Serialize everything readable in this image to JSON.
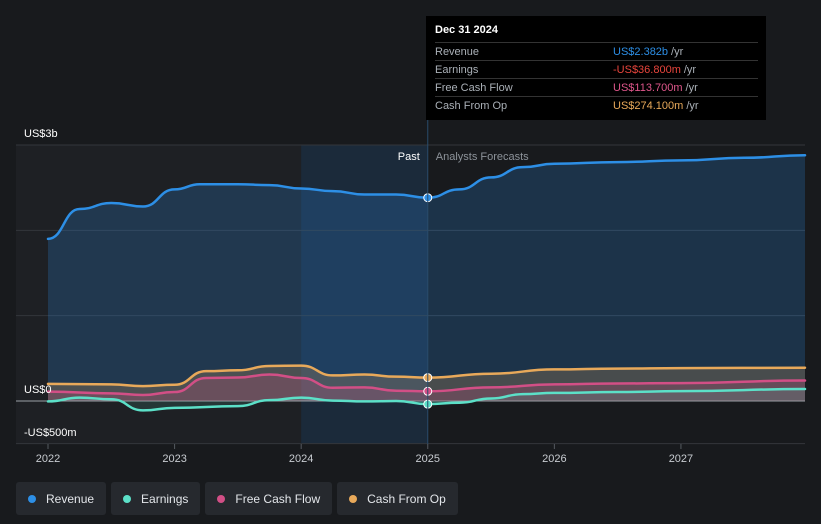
{
  "tooltip": {
    "date": "Dec 31 2024",
    "rows": [
      {
        "label": "Revenue",
        "value": "US$2.382b",
        "unit": "/yr",
        "color": "#2d8fe6"
      },
      {
        "label": "Earnings",
        "value": "-US$36.800m",
        "unit": "/yr",
        "color": "#e8453c"
      },
      {
        "label": "Free Cash Flow",
        "value": "US$113.700m",
        "unit": "/yr",
        "color": "#e0578c"
      },
      {
        "label": "Cash From Op",
        "value": "US$274.100m",
        "unit": "/yr",
        "color": "#e8a95a"
      }
    ]
  },
  "legend": [
    {
      "label": "Revenue",
      "color": "#2d8fe6"
    },
    {
      "label": "Earnings",
      "color": "#5ce0c8"
    },
    {
      "label": "Free Cash Flow",
      "color": "#d24f86"
    },
    {
      "label": "Cash From Op",
      "color": "#e8a95a"
    }
  ],
  "chart_data": {
    "type": "line",
    "y_axis_labels": [
      "US$3b",
      "US$0",
      "-US$500m"
    ],
    "region_labels": {
      "past": "Past",
      "forecast": "Analysts Forecasts"
    },
    "x_ticks": [
      "2022",
      "2023",
      "2024",
      "2025",
      "2026",
      "2027"
    ],
    "x_domain": [
      2022.0,
      2027.98
    ],
    "ylim": [
      -500,
      3000
    ],
    "gridlines_millions": [
      3000,
      2000,
      1000,
      0,
      -500
    ],
    "past_end": 2025.0,
    "highlight_start": 2024.0,
    "series": [
      {
        "name": "Revenue",
        "color": "#2d8fe6",
        "area": true,
        "points": [
          [
            2022.0,
            1900
          ],
          [
            2022.25,
            2250
          ],
          [
            2022.5,
            2320
          ],
          [
            2022.75,
            2280
          ],
          [
            2023.0,
            2480
          ],
          [
            2023.2,
            2540
          ],
          [
            2023.5,
            2540
          ],
          [
            2023.75,
            2530
          ],
          [
            2024.0,
            2490
          ],
          [
            2024.25,
            2460
          ],
          [
            2024.5,
            2420
          ],
          [
            2024.75,
            2420
          ],
          [
            2025.0,
            2382
          ],
          [
            2025.25,
            2480
          ],
          [
            2025.5,
            2620
          ],
          [
            2025.75,
            2740
          ],
          [
            2026.0,
            2780
          ],
          [
            2026.5,
            2800
          ],
          [
            2027.0,
            2820
          ],
          [
            2027.5,
            2850
          ],
          [
            2027.98,
            2880
          ]
        ]
      },
      {
        "name": "Cash From Op",
        "color": "#e8a95a",
        "area": true,
        "points": [
          [
            2022.0,
            200
          ],
          [
            2022.5,
            195
          ],
          [
            2022.75,
            175
          ],
          [
            2023.0,
            190
          ],
          [
            2023.25,
            350
          ],
          [
            2023.5,
            360
          ],
          [
            2023.75,
            410
          ],
          [
            2024.0,
            415
          ],
          [
            2024.25,
            300
          ],
          [
            2024.5,
            310
          ],
          [
            2024.75,
            285
          ],
          [
            2025.0,
            274
          ],
          [
            2025.5,
            320
          ],
          [
            2026.0,
            370
          ],
          [
            2026.5,
            380
          ],
          [
            2027.0,
            385
          ],
          [
            2027.98,
            390
          ]
        ]
      },
      {
        "name": "Free Cash Flow",
        "color": "#d24f86",
        "area": true,
        "points": [
          [
            2022.0,
            110
          ],
          [
            2022.5,
            90
          ],
          [
            2022.75,
            70
          ],
          [
            2023.0,
            105
          ],
          [
            2023.25,
            270
          ],
          [
            2023.5,
            275
          ],
          [
            2023.75,
            310
          ],
          [
            2024.0,
            270
          ],
          [
            2024.25,
            155
          ],
          [
            2024.5,
            160
          ],
          [
            2024.75,
            120
          ],
          [
            2025.0,
            114
          ],
          [
            2025.5,
            160
          ],
          [
            2026.0,
            195
          ],
          [
            2026.5,
            205
          ],
          [
            2027.0,
            210
          ],
          [
            2027.98,
            240
          ]
        ]
      },
      {
        "name": "Earnings",
        "color": "#5ce0c8",
        "area": true,
        "points": [
          [
            2022.0,
            -5
          ],
          [
            2022.25,
            40
          ],
          [
            2022.5,
            20
          ],
          [
            2022.75,
            -110
          ],
          [
            2023.0,
            -80
          ],
          [
            2023.5,
            -60
          ],
          [
            2023.75,
            10
          ],
          [
            2024.0,
            40
          ],
          [
            2024.25,
            5
          ],
          [
            2024.5,
            -5
          ],
          [
            2024.75,
            0
          ],
          [
            2025.0,
            -37
          ],
          [
            2025.25,
            -20
          ],
          [
            2025.5,
            30
          ],
          [
            2025.75,
            80
          ],
          [
            2026.0,
            95
          ],
          [
            2026.5,
            105
          ],
          [
            2027.0,
            115
          ],
          [
            2027.98,
            140
          ]
        ]
      }
    ]
  }
}
